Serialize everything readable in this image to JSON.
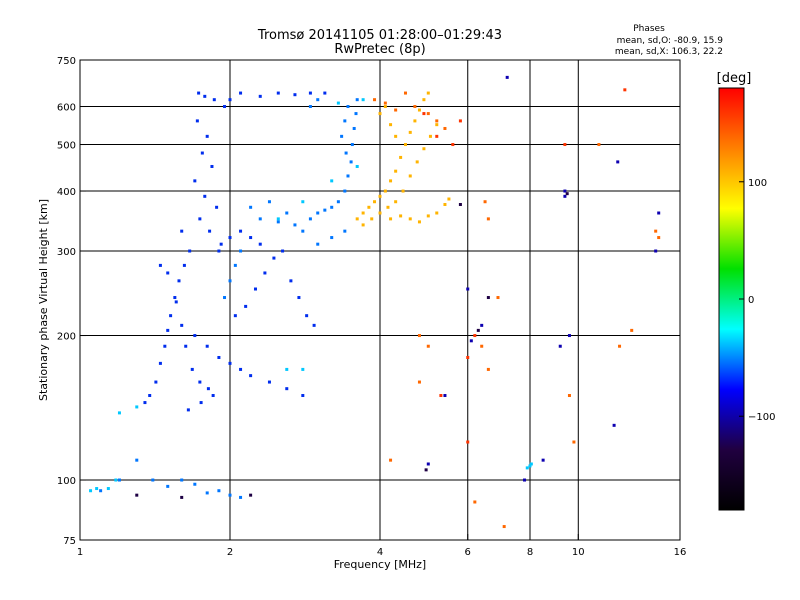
{
  "chart_data": {
    "type": "scatter",
    "title": "Tromsø 20141105 01:28:00–01:29:43",
    "subtitle": "RwPretec (8p)",
    "stats": {
      "heading": "Phases",
      "line1": "mean, sd,O: -80.9, 15.9",
      "line2": "mean, sd,X: 106.3, 22.2"
    },
    "xlabel": "Frequency [MHz]",
    "ylabel": "Stationary phase Virtual Height [km]",
    "x_scale": "log",
    "y_scale": "log",
    "xlim": [
      1,
      16
    ],
    "ylim": [
      75,
      750
    ],
    "grid": true,
    "x_ticks": [
      1,
      2,
      4,
      6,
      8,
      10,
      16
    ],
    "x_tick_labels": [
      "1",
      "2",
      "4",
      "6",
      "8",
      "10",
      "16"
    ],
    "y_ticks": [
      75,
      100,
      200,
      300,
      400,
      500,
      600,
      750
    ],
    "y_tick_labels": [
      "75",
      "100",
      "200",
      "300",
      "400",
      "500",
      "600",
      "750"
    ],
    "grid_x": [
      2,
      4,
      6,
      8,
      10
    ],
    "grid_y": [
      100,
      200,
      300,
      400,
      500,
      600
    ],
    "colorbar": {
      "label": "[deg]",
      "range": [
        -180,
        180
      ],
      "ticks": [
        100,
        0,
        -100
      ],
      "tick_labels": [
        "100",
        "0",
        "−100"
      ],
      "colors": [
        "#ff0000",
        "#ff8000",
        "#ffff00",
        "#00e000",
        "#00ffff",
        "#0000ff",
        "#200040",
        "#000000"
      ]
    },
    "series": [
      {
        "mode": "O",
        "phase_deg": -95,
        "points": [
          [
            1.73,
            640
          ],
          [
            1.78,
            630
          ],
          [
            1.86,
            620
          ],
          [
            1.95,
            600
          ],
          [
            1.72,
            560
          ],
          [
            1.8,
            520
          ],
          [
            1.76,
            480
          ],
          [
            1.84,
            450
          ],
          [
            1.7,
            420
          ],
          [
            1.78,
            390
          ],
          [
            1.88,
            370
          ],
          [
            1.74,
            350
          ],
          [
            1.82,
            330
          ],
          [
            1.92,
            310
          ],
          [
            1.6,
            330
          ],
          [
            1.66,
            300
          ],
          [
            1.62,
            280
          ],
          [
            1.58,
            260
          ],
          [
            1.55,
            240
          ],
          [
            1.52,
            220
          ],
          [
            1.5,
            205
          ],
          [
            1.48,
            190
          ],
          [
            1.45,
            175
          ],
          [
            1.42,
            160
          ],
          [
            1.38,
            150
          ],
          [
            1.35,
            145
          ],
          [
            1.6,
            210
          ],
          [
            1.7,
            200
          ],
          [
            1.8,
            190
          ],
          [
            1.9,
            180
          ],
          [
            2.0,
            175
          ],
          [
            2.1,
            170
          ],
          [
            2.2,
            165
          ],
          [
            2.4,
            160
          ],
          [
            2.6,
            155
          ],
          [
            2.8,
            150
          ],
          [
            1.65,
            140
          ],
          [
            1.75,
            145
          ],
          [
            1.85,
            150
          ],
          [
            2.05,
            220
          ],
          [
            2.15,
            230
          ],
          [
            2.25,
            250
          ],
          [
            2.35,
            270
          ],
          [
            2.45,
            290
          ],
          [
            2.55,
            300
          ],
          [
            2.65,
            260
          ],
          [
            2.75,
            240
          ],
          [
            2.85,
            220
          ],
          [
            2.95,
            210
          ],
          [
            2.0,
            620
          ],
          [
            2.1,
            640
          ],
          [
            2.3,
            630
          ],
          [
            2.5,
            640
          ],
          [
            2.7,
            635
          ],
          [
            2.9,
            640
          ],
          [
            3.1,
            640
          ],
          [
            1.45,
            280
          ],
          [
            1.5,
            270
          ],
          [
            1.56,
            235
          ],
          [
            1.63,
            190
          ],
          [
            1.68,
            170
          ],
          [
            1.74,
            160
          ],
          [
            1.81,
            155
          ],
          [
            1.9,
            300
          ],
          [
            2.0,
            320
          ],
          [
            2.1,
            330
          ],
          [
            2.2,
            320
          ],
          [
            2.3,
            310
          ]
        ]
      },
      {
        "mode": "O",
        "phase_deg": -70,
        "points": [
          [
            2.3,
            350
          ],
          [
            2.5,
            345
          ],
          [
            2.7,
            340
          ],
          [
            2.9,
            350
          ],
          [
            3.0,
            360
          ],
          [
            3.1,
            365
          ],
          [
            3.2,
            370
          ],
          [
            3.3,
            380
          ],
          [
            3.4,
            400
          ],
          [
            3.45,
            430
          ],
          [
            3.5,
            460
          ],
          [
            3.52,
            500
          ],
          [
            3.55,
            540
          ],
          [
            3.58,
            580
          ],
          [
            3.6,
            620
          ],
          [
            3.45,
            600
          ],
          [
            3.4,
            560
          ],
          [
            3.35,
            520
          ],
          [
            3.42,
            480
          ],
          [
            2.2,
            370
          ],
          [
            2.4,
            380
          ],
          [
            2.6,
            360
          ],
          [
            2.8,
            330
          ],
          [
            3.0,
            310
          ],
          [
            3.2,
            320
          ],
          [
            3.4,
            330
          ],
          [
            2.1,
            300
          ],
          [
            2.05,
            280
          ],
          [
            2.0,
            260
          ],
          [
            1.95,
            240
          ],
          [
            2.9,
            600
          ],
          [
            3.0,
            620
          ],
          [
            1.1,
            95
          ],
          [
            1.2,
            100
          ],
          [
            1.3,
            110
          ],
          [
            1.4,
            100
          ],
          [
            1.5,
            97
          ],
          [
            1.6,
            100
          ],
          [
            1.7,
            98
          ],
          [
            1.8,
            94
          ],
          [
            1.9,
            95
          ],
          [
            2.0,
            93
          ],
          [
            2.1,
            92
          ]
        ]
      },
      {
        "mode": "O",
        "phase_deg": -40,
        "points": [
          [
            1.2,
            138
          ],
          [
            1.3,
            142
          ],
          [
            1.14,
            96
          ],
          [
            1.18,
            100
          ],
          [
            2.6,
            170
          ],
          [
            2.8,
            170
          ],
          [
            3.3,
            610
          ],
          [
            3.7,
            620
          ],
          [
            8.0,
            107
          ],
          [
            8.05,
            108
          ],
          [
            7.9,
            106
          ],
          [
            2.5,
            350
          ],
          [
            2.8,
            380
          ],
          [
            3.2,
            420
          ],
          [
            3.6,
            450
          ],
          [
            1.05,
            95
          ],
          [
            1.08,
            96
          ]
        ]
      },
      {
        "mode": "X",
        "phase_deg": 110,
        "points": [
          [
            3.6,
            350
          ],
          [
            3.7,
            360
          ],
          [
            3.8,
            370
          ],
          [
            3.9,
            380
          ],
          [
            4.0,
            390
          ],
          [
            4.1,
            400
          ],
          [
            4.2,
            420
          ],
          [
            4.3,
            440
          ],
          [
            4.4,
            470
          ],
          [
            4.5,
            500
          ],
          [
            4.6,
            530
          ],
          [
            4.7,
            560
          ],
          [
            4.8,
            590
          ],
          [
            4.9,
            620
          ],
          [
            5.0,
            640
          ],
          [
            3.7,
            340
          ],
          [
            3.85,
            350
          ],
          [
            4.0,
            360
          ],
          [
            4.15,
            370
          ],
          [
            4.3,
            380
          ],
          [
            4.45,
            400
          ],
          [
            4.6,
            430
          ],
          [
            4.75,
            460
          ],
          [
            4.9,
            490
          ],
          [
            5.05,
            520
          ],
          [
            5.2,
            550
          ],
          [
            4.2,
            350
          ],
          [
            4.4,
            355
          ],
          [
            4.6,
            350
          ],
          [
            4.8,
            345
          ],
          [
            5.0,
            355
          ],
          [
            5.2,
            360
          ],
          [
            5.4,
            375
          ],
          [
            5.5,
            385
          ],
          [
            4.1,
            600
          ],
          [
            4.0,
            580
          ],
          [
            4.2,
            550
          ],
          [
            4.3,
            520
          ]
        ]
      },
      {
        "mode": "X",
        "phase_deg": 140,
        "points": [
          [
            3.9,
            620
          ],
          [
            4.1,
            610
          ],
          [
            4.3,
            590
          ],
          [
            4.5,
            640
          ],
          [
            4.7,
            600
          ],
          [
            5.0,
            580
          ],
          [
            5.2,
            560
          ],
          [
            5.4,
            540
          ],
          [
            6.5,
            380
          ],
          [
            6.6,
            350
          ],
          [
            4.8,
            200
          ],
          [
            5.0,
            190
          ],
          [
            6.4,
            190
          ],
          [
            4.8,
            160
          ],
          [
            4.2,
            110
          ],
          [
            6.2,
            90
          ],
          [
            7.1,
            80
          ],
          [
            12.8,
            205
          ],
          [
            12.1,
            190
          ],
          [
            9.6,
            150
          ],
          [
            9.8,
            120
          ],
          [
            11.0,
            500
          ],
          [
            14.3,
            330
          ],
          [
            14.5,
            320
          ],
          [
            6.9,
            240
          ],
          [
            6.6,
            170
          ]
        ]
      },
      {
        "mode": "X",
        "phase_deg": 160,
        "points": [
          [
            5.6,
            500
          ],
          [
            5.8,
            560
          ],
          [
            6.2,
            200
          ],
          [
            6.0,
            180
          ],
          [
            4.9,
            580
          ],
          [
            5.2,
            520
          ],
          [
            9.4,
            500
          ],
          [
            12.4,
            650
          ],
          [
            6.0,
            120
          ],
          [
            5.3,
            150
          ]
        ]
      },
      {
        "mode": "O",
        "phase_deg": -120,
        "points": [
          [
            6.0,
            250
          ],
          [
            6.4,
            210
          ],
          [
            6.1,
            195
          ],
          [
            7.2,
            690
          ],
          [
            9.4,
            400
          ],
          [
            9.4,
            390
          ],
          [
            12.0,
            460
          ],
          [
            11.8,
            130
          ],
          [
            9.2,
            190
          ],
          [
            9.6,
            200
          ],
          [
            5.4,
            150
          ],
          [
            5.0,
            108
          ],
          [
            14.5,
            360
          ],
          [
            14.3,
            300
          ],
          [
            7.8,
            100
          ],
          [
            8.5,
            110
          ]
        ]
      },
      {
        "mode": "O",
        "phase_deg": -150,
        "points": [
          [
            9.5,
            395
          ],
          [
            6.6,
            240
          ],
          [
            6.3,
            205
          ],
          [
            4.95,
            105
          ],
          [
            1.3,
            93
          ],
          [
            1.6,
            92
          ],
          [
            2.2,
            93
          ],
          [
            5.8,
            375
          ]
        ]
      }
    ]
  }
}
